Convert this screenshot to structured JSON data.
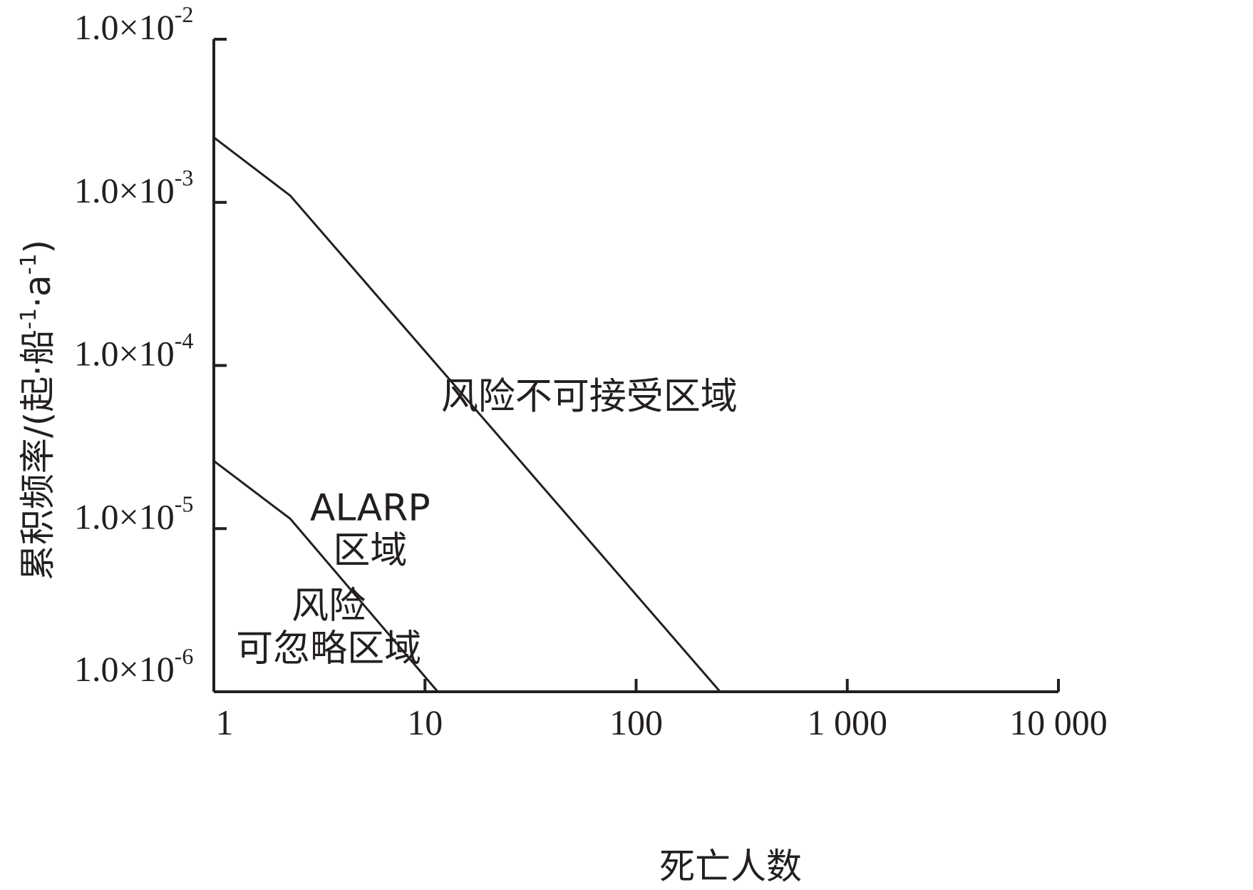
{
  "chart_data": {
    "type": "line",
    "xscale": "log",
    "yscale": "log",
    "xlim": [
      1,
      10000
    ],
    "ylim": [
      1e-06,
      0.01
    ],
    "xlabel": "死亡人数",
    "ylabel": "累积频率/(起·船",
    "ylabel_sup1": "-1",
    "ylabel_mid": "·a",
    "ylabel_sup2": "-1",
    "ylabel_end": ")",
    "x_ticks": [
      {
        "value": 1,
        "label": "1"
      },
      {
        "value": 10,
        "label": "10"
      },
      {
        "value": 100,
        "label": "100"
      },
      {
        "value": 1000,
        "label": "1 000"
      },
      {
        "value": 10000,
        "label": "10 000"
      }
    ],
    "y_ticks": [
      {
        "value": 1e-06,
        "mantissa": "1.0×10",
        "exp": "-6"
      },
      {
        "value": 1e-05,
        "mantissa": "1.0×10",
        "exp": "-5"
      },
      {
        "value": 0.0001,
        "mantissa": "1.0×10",
        "exp": "-4"
      },
      {
        "value": 0.001,
        "mantissa": "1.0×10",
        "exp": "-3"
      },
      {
        "value": 0.01,
        "mantissa": "1.0×10",
        "exp": "-2"
      }
    ],
    "series": [
      {
        "x": [
          1,
          2.3,
          250
        ],
        "y": [
          0.0025,
          0.0011,
          1e-06
        ]
      },
      {
        "x": [
          1,
          2.3,
          11.5
        ],
        "y": [
          2.6e-05,
          1.15e-05,
          1e-06
        ]
      }
    ],
    "regions": [
      {
        "lines": [
          "风险不可接受区域"
        ],
        "x": 60,
        "y": 6.5e-05
      },
      {
        "lines": [
          "ALARP",
          "区域"
        ],
        "x": 5.5,
        "y": 1e-05
      },
      {
        "lines": [
          "风险",
          "可忽略区域"
        ],
        "x": 3.5,
        "y": 2.5e-06
      }
    ]
  }
}
